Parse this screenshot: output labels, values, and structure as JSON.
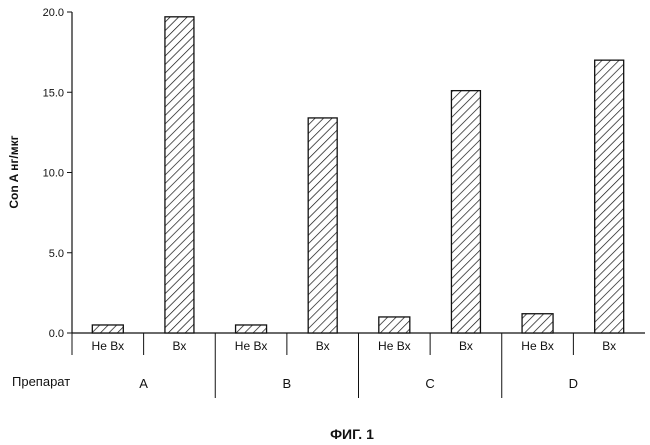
{
  "caption": "ФИГ. 1",
  "chart_data": {
    "type": "bar",
    "ylabel": "Con A нг/мкг",
    "ylim": [
      0,
      20
    ],
    "yticks": [
      "0.0",
      "5.0",
      "10.0",
      "15.0",
      "20.0"
    ],
    "grid": false,
    "group_axis_label": "Препарат",
    "groups": [
      "A",
      "B",
      "C",
      "D"
    ],
    "categories": [
      "Не Вх",
      "Вх"
    ],
    "bars": [
      {
        "group": "A",
        "category": "Не Вх",
        "value": 0.5
      },
      {
        "group": "A",
        "category": "Вх",
        "value": 19.7
      },
      {
        "group": "B",
        "category": "Не Вх",
        "value": 0.5
      },
      {
        "group": "B",
        "category": "Вх",
        "value": 13.4
      },
      {
        "group": "C",
        "category": "Не Вх",
        "value": 1.0
      },
      {
        "group": "C",
        "category": "Вх",
        "value": 15.1
      },
      {
        "group": "D",
        "category": "Не Вх",
        "value": 1.2
      },
      {
        "group": "D",
        "category": "Вх",
        "value": 17.0
      }
    ]
  }
}
